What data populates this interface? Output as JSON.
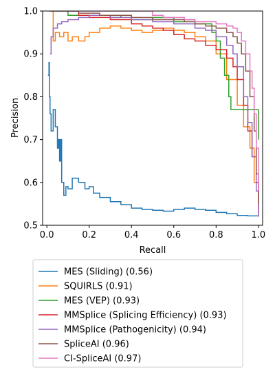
{
  "chart_data": {
    "type": "line",
    "title": "",
    "xlabel": "Recall",
    "ylabel": "Precision",
    "xlim": [
      -0.02,
      1.02
    ],
    "ylim": [
      0.5,
      1.0
    ],
    "xticks": [
      "0.0",
      "0.2",
      "0.4",
      "0.6",
      "0.8",
      "1.0"
    ],
    "xtick_values": [
      0.0,
      0.2,
      0.4,
      0.6,
      0.8,
      1.0
    ],
    "yticks": [
      "0.5",
      "0.6",
      "0.7",
      "0.8",
      "0.9",
      "1.0"
    ],
    "ytick_values": [
      0.5,
      0.6,
      0.7,
      0.8,
      0.9,
      1.0
    ],
    "grid": false,
    "legend_position": "below plot",
    "series": [
      {
        "name": "MES (Sliding) (0.56)",
        "color": "#1f77b4",
        "x": [
          0.005,
          0.01,
          0.012,
          0.015,
          0.02,
          0.03,
          0.04,
          0.05,
          0.055,
          0.06,
          0.065,
          0.07,
          0.08,
          0.09,
          0.1,
          0.12,
          0.15,
          0.18,
          0.2,
          0.22,
          0.25,
          0.3,
          0.35,
          0.4,
          0.45,
          0.5,
          0.55,
          0.6,
          0.65,
          0.7,
          0.75,
          0.8,
          0.85,
          0.9,
          0.95,
          1.0
        ],
        "y": [
          0.85,
          0.88,
          0.8,
          0.76,
          0.72,
          0.77,
          0.73,
          0.68,
          0.7,
          0.65,
          0.7,
          0.6,
          0.57,
          0.59,
          0.585,
          0.61,
          0.6,
          0.585,
          0.59,
          0.575,
          0.565,
          0.555,
          0.548,
          0.54,
          0.537,
          0.535,
          0.533,
          0.537,
          0.54,
          0.537,
          0.535,
          0.53,
          0.527,
          0.523,
          0.522,
          0.52
        ]
      },
      {
        "name": "SQUIRLS (0.91)",
        "color": "#ff7f0e",
        "x": [
          0.01,
          0.02,
          0.03,
          0.04,
          0.06,
          0.08,
          0.1,
          0.12,
          0.15,
          0.18,
          0.2,
          0.25,
          0.3,
          0.35,
          0.4,
          0.45,
          0.5,
          0.55,
          0.6,
          0.65,
          0.7,
          0.75,
          0.8,
          0.85,
          0.9,
          0.93,
          0.96,
          0.98,
          1.0
        ],
        "y": [
          1.0,
          1.0,
          0.93,
          0.95,
          0.94,
          0.95,
          0.93,
          0.94,
          0.93,
          0.94,
          0.95,
          0.96,
          0.965,
          0.96,
          0.955,
          0.95,
          0.955,
          0.96,
          0.955,
          0.95,
          0.94,
          0.93,
          0.9,
          0.84,
          0.78,
          0.73,
          0.68,
          0.6,
          0.52
        ]
      },
      {
        "name": "MES (VEP) (0.93)",
        "color": "#2ca02c",
        "x": [
          0.02,
          0.05,
          0.1,
          0.2,
          0.3,
          0.35,
          0.4,
          0.5,
          0.6,
          0.65,
          0.7,
          0.75,
          0.78,
          0.8,
          0.82,
          0.84,
          0.86,
          0.87,
          0.9,
          0.95,
          0.98,
          0.99,
          1.0
        ],
        "y": [
          1.0,
          1.0,
          0.99,
          0.99,
          0.985,
          0.99,
          0.98,
          0.985,
          0.975,
          0.98,
          0.97,
          0.97,
          0.95,
          0.93,
          0.89,
          0.85,
          0.8,
          0.77,
          0.77,
          0.77,
          0.77,
          0.77,
          0.7
        ]
      },
      {
        "name": "MMSplice (Splicing Efficiency) (0.93)",
        "color": "#d62728",
        "x": [
          0.1,
          0.15,
          0.2,
          0.3,
          0.4,
          0.45,
          0.5,
          0.55,
          0.6,
          0.65,
          0.7,
          0.75,
          0.8,
          0.85,
          0.88,
          0.9,
          0.93,
          0.95,
          0.97,
          0.99,
          1.0
        ],
        "y": [
          1.0,
          0.99,
          0.985,
          0.98,
          0.97,
          0.965,
          0.96,
          0.955,
          0.945,
          0.935,
          0.93,
          0.92,
          0.91,
          0.89,
          0.87,
          0.84,
          0.78,
          0.72,
          0.66,
          0.6,
          0.53
        ]
      },
      {
        "name": "MMSplice (Pathogenicity) (0.94)",
        "color": "#9467bd",
        "x": [
          0.015,
          0.02,
          0.03,
          0.05,
          0.07,
          0.1,
          0.15,
          0.2,
          0.3,
          0.4,
          0.5,
          0.6,
          0.7,
          0.75,
          0.8,
          0.85,
          0.88,
          0.9,
          0.93,
          0.95,
          0.97,
          0.99,
          1.0
        ],
        "y": [
          0.9,
          0.94,
          0.96,
          0.97,
          0.975,
          0.98,
          0.985,
          0.99,
          0.985,
          0.98,
          0.975,
          0.97,
          0.96,
          0.955,
          0.94,
          0.92,
          0.9,
          0.87,
          0.8,
          0.74,
          0.66,
          0.58,
          0.52
        ]
      },
      {
        "name": "SpliceAI (0.96)",
        "color": "#8c564b",
        "x": [
          0.05,
          0.15,
          0.25,
          0.35,
          0.4,
          0.5,
          0.6,
          0.65,
          0.7,
          0.75,
          0.8,
          0.85,
          0.88,
          0.9,
          0.92,
          0.94,
          0.96,
          0.98,
          0.99,
          1.0
        ],
        "y": [
          1.0,
          0.995,
          0.99,
          0.99,
          0.985,
          0.98,
          0.98,
          0.975,
          0.97,
          0.965,
          0.96,
          0.95,
          0.94,
          0.925,
          0.9,
          0.86,
          0.8,
          0.72,
          0.62,
          0.55
        ]
      },
      {
        "name": "CI-SpliceAI (0.97)",
        "color": "#e377c2",
        "x": [
          0.01,
          0.1,
          0.2,
          0.3,
          0.4,
          0.5,
          0.55,
          0.6,
          0.65,
          0.7,
          0.75,
          0.8,
          0.85,
          0.88,
          0.9,
          0.92,
          0.94,
          0.96,
          0.97,
          0.98,
          0.99,
          1.0
        ],
        "y": [
          1.0,
          1.0,
          1.0,
          1.0,
          1.0,
          0.99,
          0.985,
          0.985,
          0.98,
          0.975,
          0.975,
          0.97,
          0.965,
          0.96,
          0.95,
          0.93,
          0.9,
          0.86,
          0.82,
          0.76,
          0.68,
          0.58
        ]
      }
    ]
  }
}
